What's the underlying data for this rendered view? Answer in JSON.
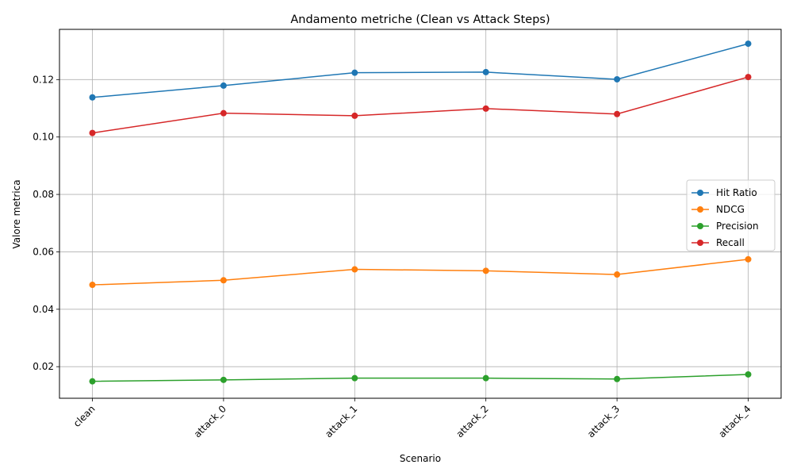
{
  "chart_data": {
    "type": "line",
    "title": "Andamento metriche (Clean vs Attack Steps)",
    "xlabel": "Scenario",
    "ylabel": "Valore metrica",
    "categories": [
      "clean",
      "attack_0",
      "attack_1",
      "attack_2",
      "attack_3",
      "attack_4"
    ],
    "ylim": [
      0.009,
      0.1375
    ],
    "yticks": [
      0.02,
      0.04,
      0.06,
      0.08,
      0.1,
      0.12
    ],
    "ytick_labels": [
      "0.02",
      "0.04",
      "0.06",
      "0.08",
      "0.10",
      "0.12"
    ],
    "grid": true,
    "legend_position": "center-right",
    "series": [
      {
        "name": "Hit Ratio",
        "color": "#1f77b4",
        "values": [
          0.1138,
          0.1179,
          0.1224,
          0.1226,
          0.1201,
          0.1325
        ]
      },
      {
        "name": "NDCG",
        "color": "#ff7f0e",
        "values": [
          0.0485,
          0.0501,
          0.0539,
          0.0534,
          0.0521,
          0.0574
        ]
      },
      {
        "name": "Precision",
        "color": "#2ca02c",
        "values": [
          0.0149,
          0.0154,
          0.016,
          0.016,
          0.0157,
          0.0173
        ]
      },
      {
        "name": "Recall",
        "color": "#d62728",
        "values": [
          0.1014,
          0.1083,
          0.1074,
          0.1099,
          0.108,
          0.1209
        ]
      }
    ]
  }
}
